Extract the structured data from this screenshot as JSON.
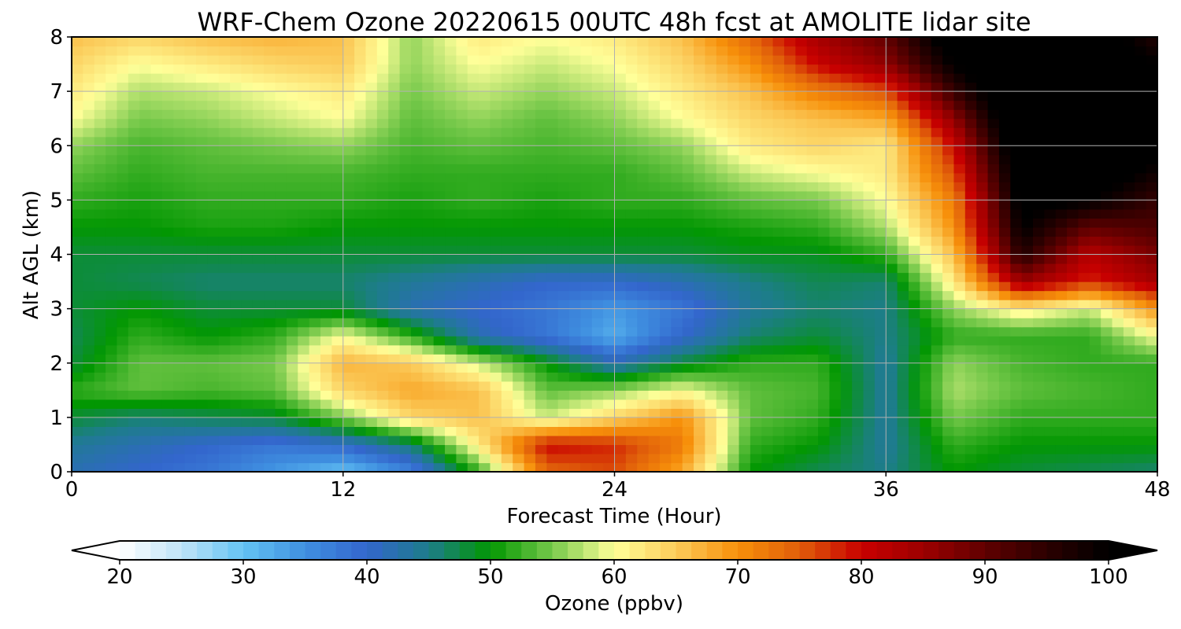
{
  "chart_data": {
    "type": "heatmap",
    "title": "WRF-Chem Ozone  20220615 00UTC 48h fcst at AMOLITE lidar site",
    "xlabel": "Forecast Time (Hour)",
    "ylabel": "Alt AGL (km)",
    "xlim": [
      0,
      48
    ],
    "ylim": [
      0,
      8
    ],
    "x_ticks": [
      "0",
      "12",
      "24",
      "36",
      "48"
    ],
    "y_ticks": [
      "0",
      "1",
      "2",
      "3",
      "4",
      "5",
      "6",
      "7",
      "8"
    ],
    "grid": true,
    "x": [
      0,
      3,
      6,
      9,
      12,
      15,
      18,
      21,
      24,
      27,
      30,
      33,
      36,
      39,
      42,
      45,
      48
    ],
    "y": [
      0,
      0.5,
      1,
      1.5,
      2,
      2.5,
      3,
      3.5,
      4,
      4.5,
      5,
      5.5,
      6,
      6.5,
      7,
      7.5,
      8
    ],
    "z": [
      [
        42,
        40,
        38,
        34,
        30,
        36,
        52,
        74,
        76,
        68,
        50,
        47,
        45,
        50,
        48,
        47,
        46
      ],
      [
        44,
        42,
        40,
        38,
        40,
        46,
        62,
        80,
        78,
        72,
        52,
        50,
        44,
        52,
        50,
        50,
        50
      ],
      [
        48,
        46,
        47,
        48,
        55,
        64,
        66,
        58,
        64,
        70,
        54,
        52,
        44,
        55,
        52,
        52,
        52
      ],
      [
        52,
        54,
        53,
        54,
        64,
        68,
        66,
        54,
        56,
        60,
        54,
        53,
        44,
        57,
        54,
        53,
        52
      ],
      [
        48,
        54,
        54,
        55,
        67,
        65,
        58,
        50,
        42,
        48,
        52,
        52,
        44,
        56,
        53,
        52,
        52
      ],
      [
        47,
        52,
        50,
        52,
        60,
        52,
        42,
        38,
        32,
        40,
        46,
        48,
        45,
        52,
        52,
        52,
        60
      ],
      [
        48,
        50,
        48,
        48,
        48,
        42,
        40,
        38,
        34,
        38,
        44,
        46,
        45,
        56,
        62,
        58,
        70
      ],
      [
        48,
        47,
        46,
        46,
        46,
        44,
        42,
        40,
        40,
        42,
        45,
        47,
        46,
        62,
        85,
        78,
        84
      ],
      [
        48,
        48,
        48,
        48,
        48,
        48,
        48,
        48,
        48,
        48,
        49,
        49,
        52,
        66,
        96,
        82,
        88
      ],
      [
        50,
        50,
        51,
        51,
        50,
        50,
        50,
        50,
        50,
        50,
        51,
        52,
        57,
        70,
        100,
        90,
        92
      ],
      [
        52,
        51,
        52,
        52,
        52,
        51,
        52,
        51,
        52,
        52,
        54,
        55,
        60,
        72,
        102,
        100,
        94
      ],
      [
        54,
        52,
        53,
        53,
        53,
        52,
        52,
        52,
        52,
        54,
        58,
        60,
        62,
        76,
        104,
        104,
        98
      ],
      [
        56,
        53,
        54,
        55,
        56,
        53,
        54,
        53,
        54,
        56,
        62,
        64,
        62,
        80,
        106,
        106,
        102
      ],
      [
        60,
        55,
        56,
        58,
        60,
        54,
        56,
        54,
        56,
        60,
        64,
        66,
        68,
        86,
        108,
        106,
        104
      ],
      [
        62,
        57,
        58,
        60,
        62,
        55,
        58,
        56,
        58,
        62,
        66,
        72,
        76,
        94,
        108,
        104,
        104
      ],
      [
        64,
        60,
        62,
        64,
        65,
        56,
        60,
        58,
        60,
        64,
        70,
        80,
        86,
        100,
        108,
        104,
        100
      ],
      [
        66,
        64,
        66,
        67,
        66,
        56,
        62,
        60,
        62,
        66,
        74,
        84,
        90,
        104,
        110,
        104,
        96
      ]
    ],
    "colorbar": {
      "label": "Ozone  (ppbv)",
      "min": 20,
      "max": 100,
      "ticks": [
        "20",
        "30",
        "40",
        "50",
        "60",
        "70",
        "80",
        "90",
        "100"
      ],
      "extend": "both"
    },
    "colormap": [
      [
        20,
        "#ffffff"
      ],
      [
        25,
        "#bfe4f7"
      ],
      [
        30,
        "#63c3f3"
      ],
      [
        35,
        "#3f8fe0"
      ],
      [
        40,
        "#3366cc"
      ],
      [
        45,
        "#1d7d8a"
      ],
      [
        50,
        "#029702"
      ],
      [
        55,
        "#77c94b"
      ],
      [
        60,
        "#ffff99"
      ],
      [
        65,
        "#fbcb5a"
      ],
      [
        70,
        "#f7900a"
      ],
      [
        75,
        "#e05e0a"
      ],
      [
        80,
        "#c80000"
      ],
      [
        85,
        "#9c0000"
      ],
      [
        90,
        "#600000"
      ],
      [
        95,
        "#2b0000"
      ],
      [
        100,
        "#000000"
      ]
    ]
  }
}
